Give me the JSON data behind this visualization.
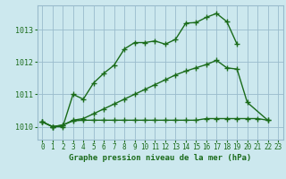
{
  "title": "Graphe pression niveau de la mer (hPa)",
  "bg_color": "#cce8ee",
  "grid_color": "#99bbcc",
  "line_color": "#1a6b1a",
  "ylim": [
    1009.6,
    1013.75
  ],
  "yticks": [
    1010,
    1011,
    1012,
    1013
  ],
  "xlim": [
    -0.5,
    23.5
  ],
  "x_ticks": [
    0,
    1,
    2,
    3,
    4,
    5,
    6,
    7,
    8,
    9,
    10,
    11,
    12,
    13,
    14,
    15,
    16,
    17,
    18,
    19,
    20,
    21,
    22,
    23
  ],
  "curve1_x": [
    0,
    1,
    2,
    3,
    4,
    5,
    6,
    7,
    8,
    9,
    10,
    11,
    12,
    13,
    14,
    15,
    16,
    17,
    18,
    19
  ],
  "curve1_y": [
    1010.15,
    1010.0,
    1010.0,
    1011.0,
    1010.85,
    1011.35,
    1011.65,
    1011.9,
    1012.4,
    1012.6,
    1012.6,
    1012.65,
    1012.55,
    1012.7,
    1013.2,
    1013.22,
    1013.38,
    1013.5,
    1013.25,
    1012.55
  ],
  "curve2_x": [
    0,
    1,
    2,
    3,
    4,
    5,
    6,
    7,
    8,
    9,
    10,
    11,
    12,
    13,
    14,
    15,
    16,
    17,
    18,
    19,
    20,
    22
  ],
  "curve2_y": [
    1010.15,
    1010.0,
    1010.05,
    1010.2,
    1010.25,
    1010.4,
    1010.55,
    1010.7,
    1010.85,
    1011.0,
    1011.15,
    1011.3,
    1011.45,
    1011.6,
    1011.72,
    1011.82,
    1011.92,
    1012.05,
    1011.82,
    1011.78,
    1010.75,
    1010.2
  ],
  "curve3_x": [
    0,
    1,
    2,
    3,
    4,
    5,
    6,
    7,
    8,
    9,
    10,
    11,
    12,
    13,
    14,
    15,
    16,
    17,
    18,
    19,
    20,
    21,
    22
  ],
  "curve3_y": [
    1010.15,
    1010.0,
    1010.05,
    1010.18,
    1010.2,
    1010.2,
    1010.2,
    1010.2,
    1010.2,
    1010.2,
    1010.2,
    1010.2,
    1010.2,
    1010.2,
    1010.2,
    1010.2,
    1010.25,
    1010.25,
    1010.25,
    1010.25,
    1010.25,
    1010.25,
    1010.2
  ],
  "marker": "+",
  "markersize": 4,
  "markeredgewidth": 1.0,
  "linewidth": 1.0,
  "tick_fontsize": 5.5,
  "ytick_fontsize": 6,
  "xlabel_fontsize": 6.5
}
